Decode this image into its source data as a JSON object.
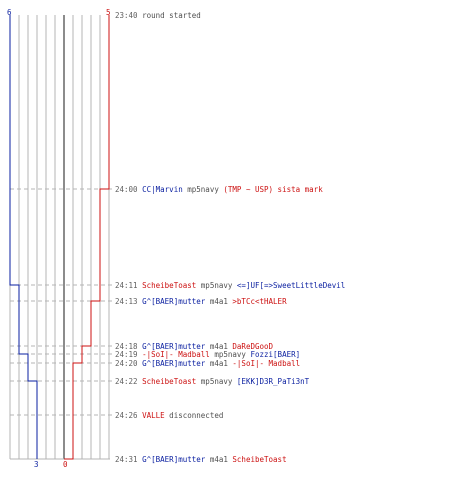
{
  "colors": {
    "blue": "#0a1fa0",
    "red": "#cc1111",
    "time": "#606060",
    "neutral": "#505050",
    "grid": "#b4b4b4",
    "dash": "#b4b4b4",
    "center": "#707070"
  },
  "score": {
    "blue_start": "6",
    "red_start": "5",
    "blue_end": "3",
    "red_end": "0"
  },
  "events": [
    {
      "time": "23:40",
      "parts": [
        {
          "t": "round started",
          "c": "neutral"
        }
      ]
    },
    {
      "time": "24:00",
      "parts": [
        {
          "t": "CC|Marvin",
          "c": "blue"
        },
        {
          "t": " mp5navy ",
          "c": "neutral"
        },
        {
          "t": "(TMP ~ USP) sista mark",
          "c": "red"
        }
      ]
    },
    {
      "time": "24:11",
      "parts": [
        {
          "t": "ScheibeToast",
          "c": "red"
        },
        {
          "t": " mp5navy ",
          "c": "neutral"
        },
        {
          "t": "<=]UF[=>SweetLittleDevil",
          "c": "blue"
        }
      ]
    },
    {
      "time": "24:13",
      "parts": [
        {
          "t": "G^[BAER]mutter",
          "c": "blue"
        },
        {
          "t": " m4a1 ",
          "c": "neutral"
        },
        {
          "t": ">bTCc<tHALER",
          "c": "red"
        }
      ]
    },
    {
      "time": "24:18",
      "parts": [
        {
          "t": "G^[BAER]mutter",
          "c": "blue"
        },
        {
          "t": " m4a1 ",
          "c": "neutral"
        },
        {
          "t": "DaReDGooD",
          "c": "red"
        }
      ]
    },
    {
      "time": "24:19",
      "parts": [
        {
          "t": "-|SoI|- Madball",
          "c": "red"
        },
        {
          "t": " mp5navy ",
          "c": "neutral"
        },
        {
          "t": "Fozzi[BAER]",
          "c": "blue"
        }
      ]
    },
    {
      "time": "24:20",
      "parts": [
        {
          "t": "G^[BAER]mutter",
          "c": "blue"
        },
        {
          "t": " m4a1 ",
          "c": "neutral"
        },
        {
          "t": "-|SoI|- Madball",
          "c": "red"
        }
      ]
    },
    {
      "time": "24:22",
      "parts": [
        {
          "t": "ScheibeToast",
          "c": "red"
        },
        {
          "t": " mp5navy ",
          "c": "neutral"
        },
        {
          "t": "[EKK]D3R_PaTi3nT",
          "c": "blue"
        }
      ]
    },
    {
      "time": "24:26",
      "parts": [
        {
          "t": "VALLE",
          "c": "red"
        },
        {
          "t": " disconnected",
          "c": "neutral"
        }
      ]
    },
    {
      "time": "24:31",
      "parts": [
        {
          "t": "G^[BAER]mutter",
          "c": "blue"
        },
        {
          "t": " m4a1 ",
          "c": "neutral"
        },
        {
          "t": "ScheibeToast",
          "c": "red"
        }
      ]
    }
  ]
}
